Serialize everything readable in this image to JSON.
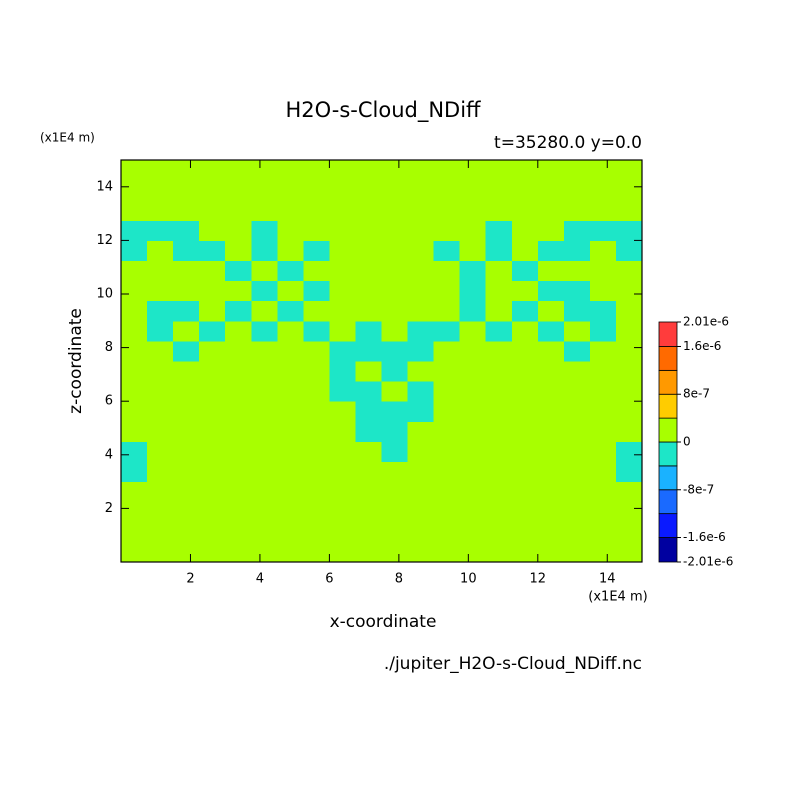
{
  "chart_data": {
    "type": "contour",
    "title": "H2O-s-Cloud_NDiff",
    "subtitle": "t=35280.0 y=0.0",
    "y_unit": "(x1E4 m)",
    "x_unit": "(x1E4 m)",
    "xlabel": "x-coordinate",
    "ylabel": "z-coordinate",
    "source": "./jupiter_H2O-s-Cloud_NDiff.nc",
    "xlim": [
      0,
      15
    ],
    "ylim": [
      0,
      15
    ],
    "xticks": [
      2,
      4,
      6,
      8,
      10,
      12,
      14
    ],
    "yticks": [
      2,
      4,
      6,
      8,
      10,
      12,
      14
    ],
    "x": [
      0.375,
      1.125,
      1.875,
      2.625,
      3.375,
      4.125,
      4.875,
      5.625,
      6.375,
      7.125,
      7.875,
      8.625,
      9.375,
      10.125,
      10.875,
      11.625,
      12.375,
      13.125,
      13.875,
      14.625
    ],
    "y": [
      0.375,
      1.125,
      1.875,
      2.625,
      3.375,
      4.125,
      4.875,
      5.625,
      6.375,
      7.125,
      7.875,
      8.625,
      9.375,
      10.125,
      10.875,
      11.625,
      12.375,
      13.125,
      13.875,
      14.625
    ],
    "z": [
      [
        0,
        0,
        0,
        0,
        0,
        0,
        0,
        0,
        0,
        0,
        0,
        0,
        0,
        0,
        0,
        0,
        0,
        0,
        0,
        0
      ],
      [
        0,
        0,
        0,
        0,
        0,
        0,
        0,
        0,
        0,
        0,
        0,
        0,
        0,
        0,
        0,
        0,
        0,
        0,
        0,
        0
      ],
      [
        0,
        0,
        0,
        0,
        0,
        0,
        0,
        0,
        0,
        0,
        0,
        0,
        0,
        0,
        0,
        0,
        0,
        0,
        0,
        0
      ],
      [
        0,
        0,
        0,
        0,
        0,
        0,
        0,
        0,
        0,
        0,
        0,
        0,
        0,
        0,
        0,
        0,
        0,
        0,
        0,
        0
      ],
      [
        -4e-07,
        0,
        0,
        0,
        0,
        0,
        0,
        0,
        0,
        0,
        0,
        0,
        0,
        0,
        0,
        0,
        0,
        0,
        0,
        -4e-07
      ],
      [
        -4e-07,
        0,
        0,
        0,
        0,
        0,
        0,
        0,
        0,
        0,
        -4e-07,
        0,
        0,
        0,
        0,
        0,
        0,
        0,
        0,
        -4e-07
      ],
      [
        0,
        0,
        0,
        0,
        0,
        0,
        0,
        0,
        0,
        -4e-07,
        -4e-07,
        0,
        0,
        0,
        0,
        0,
        0,
        0,
        0,
        0
      ],
      [
        0,
        0,
        0,
        0,
        0,
        0,
        0,
        0,
        0,
        -4e-07,
        -4e-07,
        -4e-07,
        0,
        0,
        0,
        0,
        0,
        0,
        0,
        0
      ],
      [
        0,
        0,
        0,
        0,
        0,
        0,
        0,
        0,
        -4e-07,
        -4e-07,
        0,
        -4e-07,
        0,
        0,
        0,
        0,
        0,
        0,
        0,
        0
      ],
      [
        0,
        0,
        0,
        0,
        0,
        0,
        0,
        0,
        -4e-07,
        0,
        -4e-07,
        0,
        0,
        0,
        0,
        0,
        0,
        0,
        0,
        0
      ],
      [
        0,
        0,
        -4e-07,
        0,
        0,
        0,
        0,
        0,
        -4e-07,
        -4e-07,
        -4e-07,
        -4e-07,
        0,
        0,
        0,
        0,
        0,
        -4e-07,
        0,
        0
      ],
      [
        0,
        -4e-07,
        0,
        -4e-07,
        0,
        -4e-07,
        0,
        -4e-07,
        0,
        -4e-07,
        0,
        -4e-07,
        -4e-07,
        0,
        -4e-07,
        0,
        -4e-07,
        0,
        -4e-07,
        0
      ],
      [
        0,
        -4e-07,
        -4e-07,
        0,
        -4e-07,
        0,
        -4e-07,
        0,
        0,
        0,
        0,
        0,
        0,
        -4e-07,
        0,
        -4e-07,
        0,
        -4e-07,
        -4e-07,
        0
      ],
      [
        0,
        0,
        0,
        0,
        0,
        -4e-07,
        0,
        -4e-07,
        0,
        0,
        0,
        0,
        0,
        -4e-07,
        0,
        0,
        -4e-07,
        -4e-07,
        0,
        0
      ],
      [
        0,
        0,
        0,
        0,
        -4e-07,
        0,
        -4e-07,
        0,
        0,
        0,
        0,
        0,
        0,
        -4e-07,
        0,
        -4e-07,
        0,
        0,
        0,
        0
      ],
      [
        -4e-07,
        0,
        -4e-07,
        -4e-07,
        0,
        -4e-07,
        0,
        -4e-07,
        0,
        0,
        0,
        0,
        -4e-07,
        0,
        -4e-07,
        0,
        -4e-07,
        -4e-07,
        0,
        -4e-07
      ],
      [
        -4e-07,
        -4e-07,
        -4e-07,
        0,
        0,
        -4e-07,
        0,
        0,
        0,
        0,
        0,
        0,
        0,
        0,
        -4e-07,
        0,
        0,
        -4e-07,
        -4e-07,
        -4e-07
      ],
      [
        0,
        0,
        0,
        0,
        0,
        0,
        0,
        0,
        0,
        0,
        0,
        0,
        0,
        0,
        0,
        0,
        0,
        0,
        0,
        0
      ],
      [
        0,
        0,
        0,
        0,
        0,
        0,
        0,
        0,
        0,
        0,
        0,
        0,
        0,
        0,
        0,
        0,
        0,
        0,
        0,
        0
      ],
      [
        0,
        0,
        0,
        0,
        0,
        0,
        0,
        0,
        0,
        0,
        0,
        0,
        0,
        0,
        0,
        0,
        0,
        0,
        0,
        0
      ]
    ],
    "levels": [
      -2.01e-06,
      -1.6e-06,
      -1.2e-06,
      -8e-07,
      -4e-07,
      0,
      4e-07,
      8e-07,
      1.2e-06,
      1.6e-06,
      2.01e-06
    ],
    "colors": [
      "#0000a0",
      "#0a1aff",
      "#1a6aff",
      "#1ab2ff",
      "#1de6c8",
      "#a8ff00",
      "#ffcc00",
      "#ff9900",
      "#ff6a00",
      "#ff3c3c"
    ],
    "colorbar_ticks": [
      {
        "value": 2.01e-06,
        "label": "2.01e-6"
      },
      {
        "value": 1.6e-06,
        "label": "1.6e-6"
      },
      {
        "value": 8e-07,
        "label": "8e-7"
      },
      0,
      {
        "value": -8e-07,
        "label": "-8e-7"
      },
      {
        "value": -1.6e-06,
        "label": "-1.6e-6"
      },
      {
        "value": -2.01e-06,
        "label": "-2.01e-6"
      }
    ]
  }
}
